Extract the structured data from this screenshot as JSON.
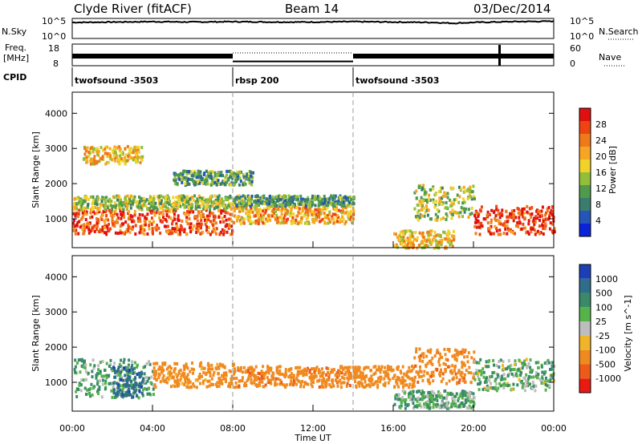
{
  "header": {
    "station": "Clyde River (fitACF)",
    "beam": "Beam 14",
    "date": "03/Dec/2014"
  },
  "nsky_panel": {
    "left_label": "N.Sky",
    "right_label": "N.Search",
    "left_top_tick": "10^5",
    "left_bottom_tick": "10^0",
    "right_top_tick": "10^5",
    "right_bottom_tick": "10^0"
  },
  "freq_panel": {
    "left_label_1": "Freq.",
    "left_label_2": "[MHz]",
    "left_top_tick": "18",
    "left_bottom_tick": "8",
    "right_label": "Nave",
    "right_top_tick": "60",
    "right_bottom_tick": "0"
  },
  "cpid_panel": {
    "label": "CPID",
    "segments": [
      {
        "name": "twofsound -3503",
        "start_h": 0,
        "end_h": 8
      },
      {
        "name": "rbsp 200",
        "start_h": 8,
        "end_h": 14
      },
      {
        "name": "twofsound -3503",
        "start_h": 14,
        "end_h": 24
      }
    ]
  },
  "xaxis": {
    "label": "Time UT",
    "ticks": [
      "00:00",
      "04:00",
      "08:00",
      "12:00",
      "16:00",
      "20:00",
      "00:00"
    ]
  },
  "yaxis": {
    "label": "Slant Range [km]",
    "ticks": [
      "1000",
      "2000",
      "3000",
      "4000"
    ]
  },
  "power_colorbar": {
    "label": "Power [dB]",
    "ticks": [
      "4",
      "8",
      "12",
      "16",
      "20",
      "24",
      "28"
    ],
    "colors": [
      "#0a22d9",
      "#2356b8",
      "#3a7d6e",
      "#4f9a4c",
      "#91bf3a",
      "#f0d22a",
      "#f6a623",
      "#f07a1a",
      "#ee4412",
      "#e01010"
    ]
  },
  "velocity_colorbar": {
    "label": "Velocity [m s^-1]",
    "ticks": [
      "1000",
      "500",
      "100",
      "25",
      "-25",
      "-100",
      "-500",
      "-1000"
    ],
    "colors": [
      "#1c3fb8",
      "#2f6d8a",
      "#3a8a6a",
      "#56b34a",
      "#bdbdbd",
      "#f0b429",
      "#f08a1f",
      "#ee5a18",
      "#e81a12"
    ]
  },
  "chart_data": [
    {
      "type": "line",
      "title": "N.Sky / N.Search",
      "x_range_h": [
        0,
        24
      ],
      "ylim_log": [
        0,
        5
      ],
      "series": [
        {
          "x_h": [
            0,
            2,
            4,
            6,
            8,
            10,
            12,
            14,
            16,
            18,
            19,
            20,
            22,
            24
          ],
          "y_log": [
            4.0,
            4.1,
            4.2,
            4.1,
            4.2,
            4.1,
            4.1,
            4.2,
            4.1,
            4.0,
            3.8,
            4.0,
            4.2,
            4.3
          ]
        }
      ]
    },
    {
      "type": "area",
      "title": "Frequency / Nave",
      "x_range_h": [
        0,
        24
      ],
      "ylim": [
        8,
        18
      ],
      "series": [
        {
          "x_h": [
            0,
            8,
            8,
            14,
            14,
            24
          ],
          "y": [
            11,
            11,
            10,
            10,
            11,
            11
          ]
        }
      ]
    },
    {
      "type": "heatmap",
      "title": "Power [dB]",
      "x_range_h": [
        0,
        24
      ],
      "ylim_km": [
        180,
        4600
      ],
      "value_range": [
        0,
        30
      ],
      "blobs": [
        {
          "t0": 0.0,
          "t1": 8.0,
          "r0": 600,
          "r1": 1300,
          "v": 25
        },
        {
          "t0": 0.0,
          "t1": 8.0,
          "r0": 1300,
          "r1": 1700,
          "v": 14
        },
        {
          "t0": 8.0,
          "t1": 14.0,
          "r0": 900,
          "r1": 1400,
          "v": 20
        },
        {
          "t0": 8.0,
          "t1": 14.0,
          "r0": 1400,
          "r1": 1700,
          "v": 10
        },
        {
          "t0": 16.0,
          "t1": 19.0,
          "r0": 200,
          "r1": 700,
          "v": 18
        },
        {
          "t0": 17.0,
          "t1": 20.0,
          "r0": 1000,
          "r1": 2000,
          "v": 14
        },
        {
          "t0": 20.0,
          "t1": 24.0,
          "r0": 600,
          "r1": 1400,
          "v": 26
        },
        {
          "t0": 0.5,
          "t1": 3.5,
          "r0": 2600,
          "r1": 3100,
          "v": 18
        },
        {
          "t0": 5.0,
          "t1": 9.0,
          "r0": 2000,
          "r1": 2400,
          "v": 10
        }
      ]
    },
    {
      "type": "heatmap",
      "title": "Velocity [m s^-1]",
      "x_range_h": [
        0,
        24
      ],
      "ylim_km": [
        180,
        4600
      ],
      "value_range": [
        -1000,
        1000
      ],
      "blobs": [
        {
          "t0": 0.0,
          "t1": 4.0,
          "r0": 600,
          "r1": 1700,
          "v": 100
        },
        {
          "t0": 2.0,
          "t1": 3.5,
          "r0": 600,
          "r1": 1500,
          "v": 900
        },
        {
          "t0": 4.0,
          "t1": 8.0,
          "r0": 900,
          "r1": 1600,
          "v": -200
        },
        {
          "t0": 8.0,
          "t1": 14.0,
          "r0": 900,
          "r1": 1500,
          "v": -400
        },
        {
          "t0": 14.0,
          "t1": 17.0,
          "r0": 900,
          "r1": 1500,
          "v": -300
        },
        {
          "t0": 16.0,
          "t1": 20.0,
          "r0": 300,
          "r1": 800,
          "v": 100
        },
        {
          "t0": 17.0,
          "t1": 20.0,
          "r0": 1000,
          "r1": 2000,
          "v": -400
        },
        {
          "t0": 20.0,
          "t1": 24.0,
          "r0": 800,
          "r1": 1700,
          "v": 80
        }
      ]
    }
  ]
}
